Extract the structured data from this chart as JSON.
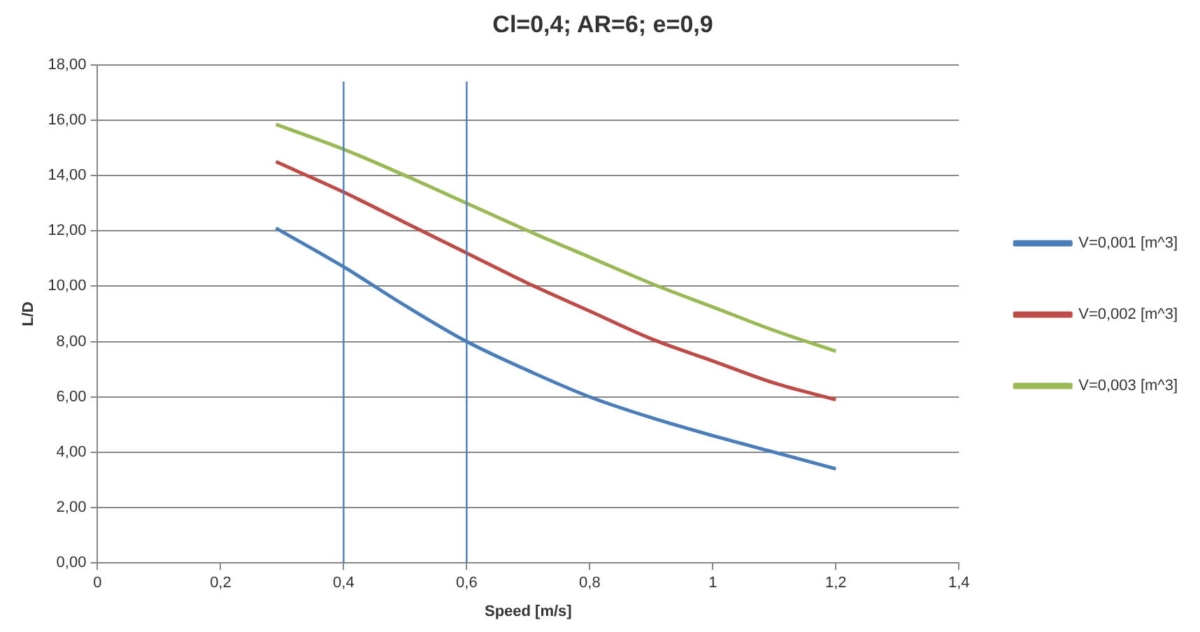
{
  "chart_data": {
    "type": "line",
    "title": "Cl=0,4; AR=6; e=0,9",
    "xlabel": "Speed [m/s]",
    "ylabel": "L/D",
    "xlim": [
      0,
      1.4
    ],
    "xticks": [
      0,
      {
        "value": 0.2,
        "label": "0,2"
      },
      {
        "value": 0.4,
        "label": "0,4"
      },
      {
        "value": 0.6,
        "label": "0,6"
      },
      {
        "value": 0.8,
        "label": "0,8"
      },
      1,
      {
        "value": 1.2,
        "label": "1,2"
      },
      {
        "value": 1.4,
        "label": "1,4"
      }
    ],
    "ylim": [
      0,
      18
    ],
    "yticks": [
      {
        "value": 0,
        "label": "0,00"
      },
      {
        "value": 2,
        "label": "2,00"
      },
      {
        "value": 4,
        "label": "4,00"
      },
      {
        "value": 6,
        "label": "6,00"
      },
      {
        "value": 8,
        "label": "8,00"
      },
      {
        "value": 10,
        "label": "10,00"
      },
      {
        "value": 12,
        "label": "12,00"
      },
      {
        "value": 14,
        "label": "14,00"
      },
      {
        "value": 16,
        "label": "16,00"
      },
      {
        "value": 18,
        "label": "18,00"
      }
    ],
    "x": [
      0.29,
      0.4,
      0.5,
      0.6,
      0.7,
      0.8,
      0.9,
      1.0,
      1.1,
      1.2
    ],
    "series": [
      {
        "name": "V=0,001 [m^3]",
        "color": "#4a7ebb",
        "values": [
          12.1,
          10.7,
          9.3,
          8.0,
          6.95,
          6.0,
          5.25,
          4.6,
          4.0,
          3.4
        ]
      },
      {
        "name": "V=0,002 [m^3]",
        "color": "#be4b48",
        "values": [
          14.5,
          13.4,
          12.3,
          11.2,
          10.1,
          9.1,
          8.1,
          7.3,
          6.5,
          5.9
        ]
      },
      {
        "name": "V=0,003 [m^3]",
        "color": "#98b954",
        "values": [
          15.85,
          14.95,
          14.0,
          13.0,
          12.0,
          11.05,
          10.1,
          9.25,
          8.4,
          7.65
        ]
      }
    ],
    "ref_lines": [
      {
        "axis": "x",
        "value": 0.4,
        "color": "#4a7ebb"
      },
      {
        "axis": "x",
        "value": 0.6,
        "color": "#4a7ebb"
      }
    ],
    "grid": "y",
    "legend": "right",
    "marker": "none",
    "line_style": "solid"
  }
}
